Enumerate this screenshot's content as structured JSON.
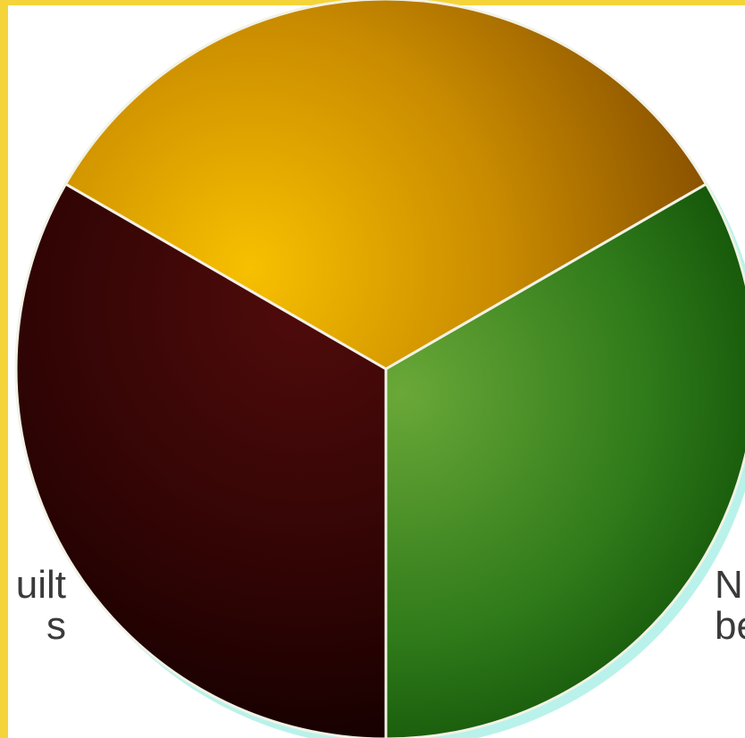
{
  "colors": {
    "frame": "#f5d43a",
    "top_slice": "#e0a300",
    "right_slice": "#3f8a1f",
    "left_slice": "#3a0606",
    "separator": "#f2f2e6",
    "shadow": "#b9f2ea"
  },
  "chart_data": {
    "type": "pie",
    "title": "",
    "slices": [
      {
        "label": "",
        "value": 33.3,
        "color": "#e0a300"
      },
      {
        "label": "N\nbe",
        "value": 33.3,
        "color": "#3f8a1f"
      },
      {
        "label": "uilt\ns",
        "value": 33.3,
        "color": "#3a0606"
      }
    ]
  }
}
